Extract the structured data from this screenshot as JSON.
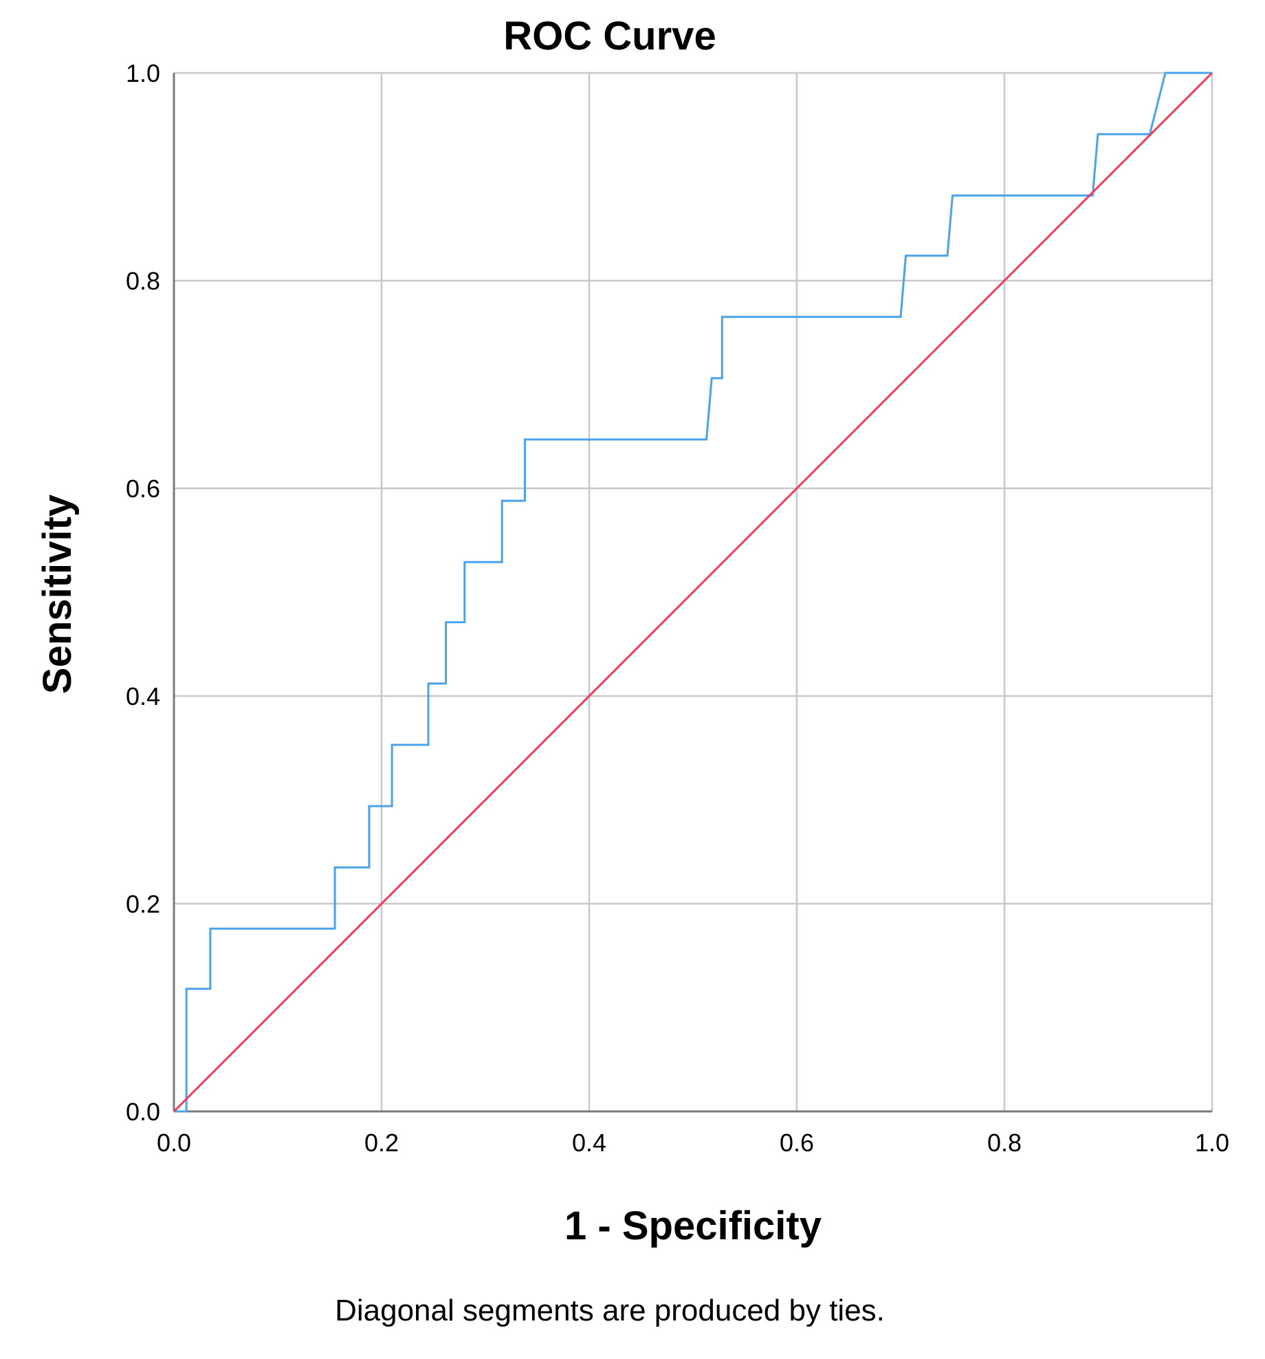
{
  "chart_data": {
    "type": "line",
    "title": "ROC Curve",
    "xlabel": "1 - Specificity",
    "ylabel": "Sensitivity",
    "xlim": [
      0,
      1
    ],
    "ylim": [
      0,
      1
    ],
    "x_ticks": [
      "0.0",
      "0.2",
      "0.4",
      "0.6",
      "0.8",
      "1.0"
    ],
    "y_ticks": [
      "0.0",
      "0.2",
      "0.4",
      "0.6",
      "0.8",
      "1.0"
    ],
    "grid": true,
    "footnote": "Diagonal segments are produced by ties.",
    "series": [
      {
        "color": "#4aa3ea",
        "points": [
          [
            0.0,
            0.0
          ],
          [
            0.012,
            0.0
          ],
          [
            0.012,
            0.118
          ],
          [
            0.035,
            0.118
          ],
          [
            0.035,
            0.176
          ],
          [
            0.155,
            0.176
          ],
          [
            0.155,
            0.235
          ],
          [
            0.188,
            0.235
          ],
          [
            0.188,
            0.294
          ],
          [
            0.21,
            0.294
          ],
          [
            0.21,
            0.353
          ],
          [
            0.245,
            0.353
          ],
          [
            0.245,
            0.412
          ],
          [
            0.262,
            0.412
          ],
          [
            0.262,
            0.471
          ],
          [
            0.28,
            0.471
          ],
          [
            0.28,
            0.529
          ],
          [
            0.316,
            0.529
          ],
          [
            0.316,
            0.588
          ],
          [
            0.338,
            0.588
          ],
          [
            0.338,
            0.647
          ],
          [
            0.513,
            0.647
          ],
          [
            0.518,
            0.706
          ],
          [
            0.528,
            0.706
          ],
          [
            0.528,
            0.765
          ],
          [
            0.7,
            0.765
          ],
          [
            0.705,
            0.824
          ],
          [
            0.745,
            0.824
          ],
          [
            0.75,
            0.882
          ],
          [
            0.885,
            0.882
          ],
          [
            0.89,
            0.941
          ],
          [
            0.94,
            0.941
          ],
          [
            0.955,
            1.0
          ],
          [
            1.0,
            1.0
          ]
        ]
      },
      {
        "color": "#ee3e5c",
        "points": [
          [
            0,
            0
          ],
          [
            1,
            1
          ]
        ]
      }
    ]
  }
}
